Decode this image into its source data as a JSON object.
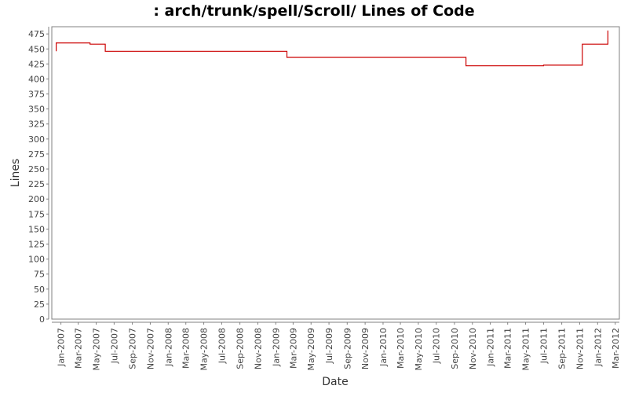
{
  "chart_data": {
    "type": "line",
    "title": ": arch/trunk/spell/Scroll/ Lines of Code",
    "xlabel": "Date",
    "ylabel": "Lines",
    "ylim": [
      0,
      487
    ],
    "xlim": [
      "2006-12-01",
      "2012-03-15"
    ],
    "yticks": [
      0,
      25,
      50,
      75,
      100,
      125,
      150,
      175,
      200,
      225,
      250,
      275,
      300,
      325,
      350,
      375,
      400,
      425,
      450,
      475
    ],
    "xticks": [
      "2007-01-01",
      "2007-03-01",
      "2007-05-01",
      "2007-07-01",
      "2007-09-01",
      "2007-11-01",
      "2008-01-01",
      "2008-03-01",
      "2008-05-01",
      "2008-07-01",
      "2008-09-01",
      "2008-11-01",
      "2009-01-01",
      "2009-03-01",
      "2009-05-01",
      "2009-07-01",
      "2009-09-01",
      "2009-11-01",
      "2010-01-01",
      "2010-03-01",
      "2010-05-01",
      "2010-07-01",
      "2010-09-01",
      "2010-11-01",
      "2011-01-01",
      "2011-03-01",
      "2011-05-01",
      "2011-07-01",
      "2011-09-01",
      "2011-11-01",
      "2012-01-01",
      "2012-03-01"
    ],
    "xtick_labels": [
      "Jan-2007",
      "Mar-2007",
      "May-2007",
      "Jul-2007",
      "Sep-2007",
      "Nov-2007",
      "Jan-2008",
      "Mar-2008",
      "May-2008",
      "Jul-2008",
      "Sep-2008",
      "Nov-2008",
      "Jan-2009",
      "Mar-2009",
      "May-2009",
      "Jul-2009",
      "Sep-2009",
      "Nov-2009",
      "Jan-2010",
      "Mar-2010",
      "May-2010",
      "Jul-2010",
      "Sep-2010",
      "Nov-2010",
      "Jan-2011",
      "Mar-2011",
      "May-2011",
      "Jul-2011",
      "Sep-2011",
      "Nov-2011",
      "Jan-2012",
      "Mar-2012"
    ],
    "series": [
      {
        "color": "#cc0000",
        "step": true,
        "points": [
          {
            "x": "2006-12-15",
            "y": 447
          },
          {
            "x": "2006-12-16",
            "y": 460
          },
          {
            "x": "2007-04-10",
            "y": 458
          },
          {
            "x": "2007-06-01",
            "y": 446
          },
          {
            "x": "2009-02-08",
            "y": 436
          },
          {
            "x": "2010-10-10",
            "y": 422
          },
          {
            "x": "2011-07-01",
            "y": 423
          },
          {
            "x": "2011-11-10",
            "y": 458
          },
          {
            "x": "2012-02-05",
            "y": 480
          },
          {
            "x": "2012-02-06",
            "y": 480
          }
        ]
      }
    ],
    "grid": false,
    "legend": "none"
  }
}
